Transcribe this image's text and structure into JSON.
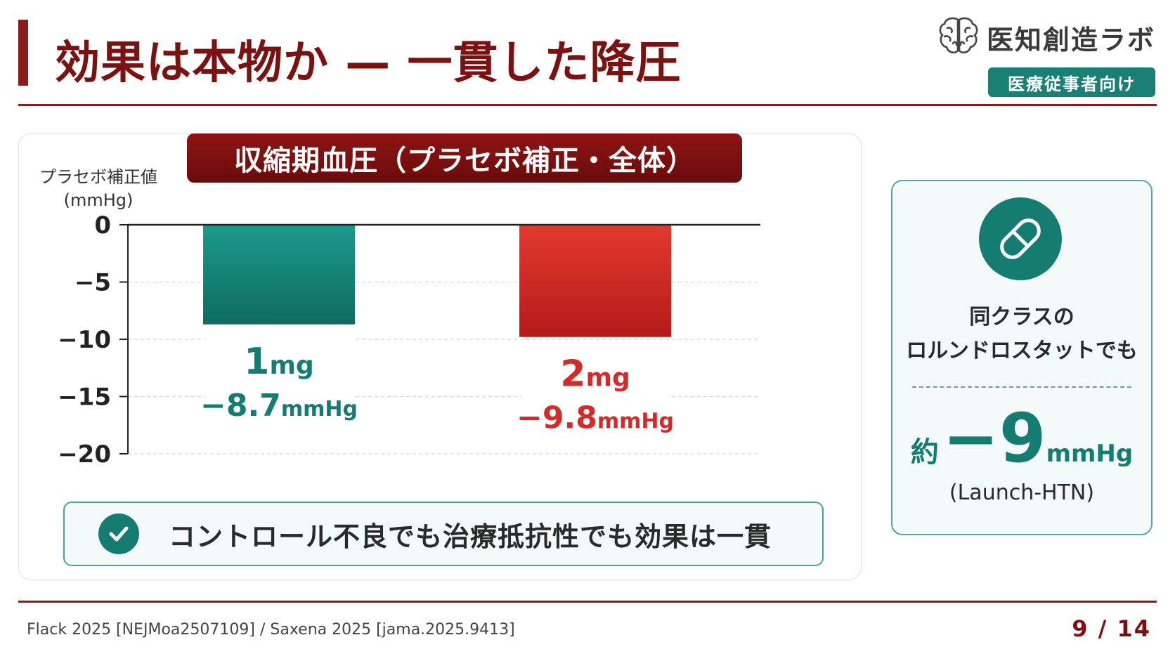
{
  "header": {
    "title": "効果は本物か — 一貫した降圧",
    "brand_name": "医知創造ラボ",
    "audience_tag": "医療従事者向け",
    "brand_icon": "brain-icon"
  },
  "chart_data": {
    "type": "bar",
    "title": "収縮期血圧（プラセボ補正・全体）",
    "ylabel_line1": "プラセボ補正値",
    "ylabel_line2": "(mmHg)",
    "xlabel": "",
    "categories": [
      "1mg",
      "2mg"
    ],
    "values": [
      -8.7,
      -9.8
    ],
    "value_labels": [
      "−8.7",
      "−9.8"
    ],
    "value_unit": "mmHg",
    "ylim": [
      -20,
      0
    ],
    "yticks": [
      0,
      -5,
      -10,
      -15,
      -20
    ],
    "ytick_labels": [
      "0",
      "−5",
      "−10",
      "−15",
      "−20"
    ],
    "grid": true,
    "legend": "none",
    "colors": [
      "#157c72",
      "#d42a2a"
    ]
  },
  "banner": {
    "icon": "check-circle-icon",
    "text": "コントロール不良でも治療抵抗性でも効果は一貫"
  },
  "side_card": {
    "icon": "pill-icon",
    "line1": "同クラスの",
    "line2": "ロルンドロスタットでも",
    "value_prefix": "約",
    "value": "−9",
    "value_unit": "mmHg",
    "source": "(Launch-HTN)"
  },
  "footer": {
    "citation": "Flack 2025 [NEJMoa2507109] / Saxena 2025 [jama.2025.9413]",
    "page": "9 / 14"
  }
}
